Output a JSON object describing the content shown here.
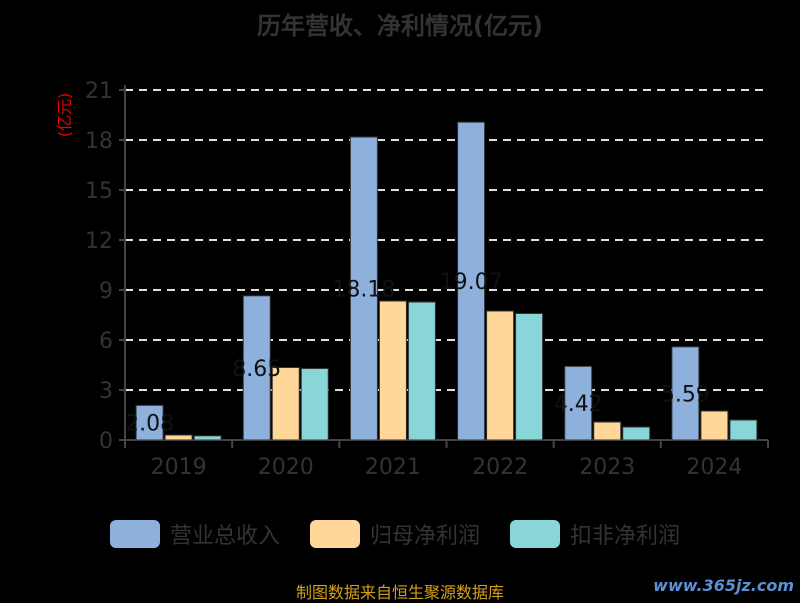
{
  "title": "历年营收、净利情况(亿元)",
  "source": "制图数据来自恒生聚源数据库",
  "watermark": "www.365jz.com",
  "chart_data": {
    "type": "bar",
    "title": "历年营收、净利情况(亿元)",
    "ylabel": "(亿元)",
    "xlabel": "",
    "ylim": [
      0,
      21
    ],
    "yticks": [
      0,
      3,
      6,
      9,
      12,
      15,
      18,
      21
    ],
    "grid": true,
    "legend_position": "bottom",
    "categories": [
      "2019",
      "2020",
      "2021",
      "2022",
      "2023",
      "2024"
    ],
    "series": [
      {
        "name": "营业总收入",
        "color": "#8eb0dd",
        "values": [
          2.08,
          8.65,
          18.18,
          19.07,
          4.42,
          5.59
        ],
        "labels": [
          "2.08",
          "8.65",
          "18.18",
          "19.07",
          "4.42",
          "5.59"
        ]
      },
      {
        "name": "归母净利润",
        "color": "#ffd899",
        "values": [
          0.3,
          4.35,
          8.34,
          7.74,
          1.08,
          1.74
        ]
      },
      {
        "name": "扣非净利润",
        "color": "#88d6d8",
        "values": [
          0.25,
          4.29,
          8.28,
          7.59,
          0.78,
          1.2
        ]
      }
    ]
  }
}
